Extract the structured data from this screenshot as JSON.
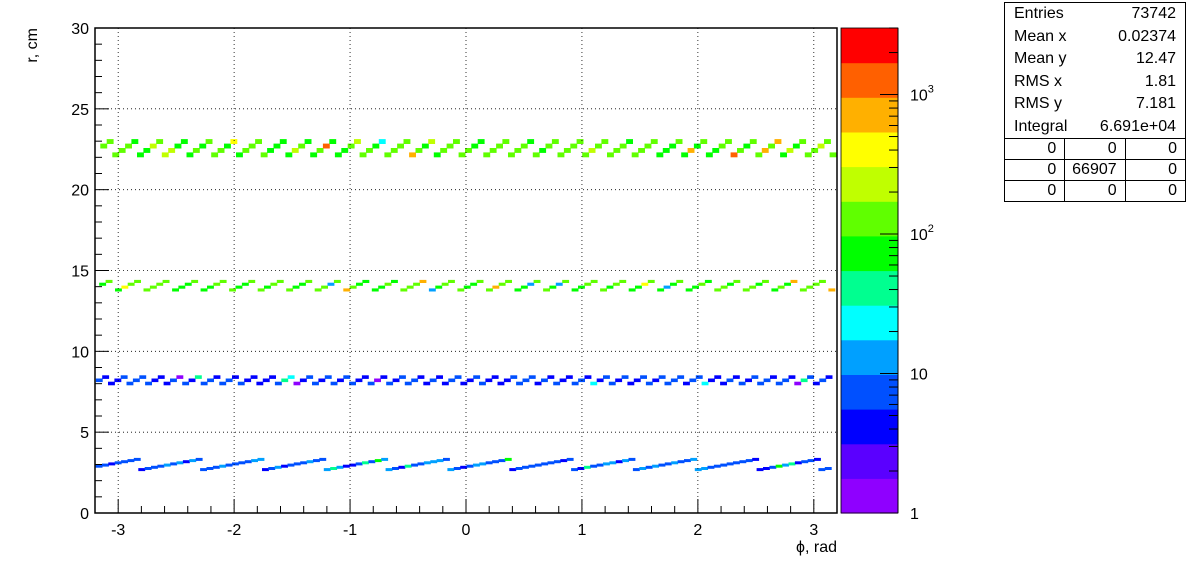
{
  "chart_data": {
    "type": "heatmap",
    "xlabel": "ϕ, rad",
    "ylabel": "r, cm",
    "xlim": [
      -3.2,
      3.2
    ],
    "ylim": [
      0,
      30
    ],
    "x_ticks": [
      -3,
      -2,
      -1,
      0,
      1,
      2,
      3
    ],
    "y_ticks": [
      0,
      5,
      10,
      15,
      20,
      25,
      30
    ],
    "grid": true,
    "z_scale": "log",
    "z_range": [
      1,
      3000
    ],
    "z_ticks": [
      {
        "value": 1,
        "label": "1"
      },
      {
        "value": 10,
        "label": "10"
      },
      {
        "value": 100,
        "label": "10^2"
      },
      {
        "value": 1000,
        "label": "10^3"
      }
    ],
    "bands": [
      {
        "r_low": 2.7,
        "r_high": 3.4,
        "modules": 12,
        "level": 8,
        "bin_width": 0.055
      },
      {
        "r_low": 7.9,
        "r_high": 8.5,
        "modules": 40,
        "level": 6,
        "bin_width": 0.055
      },
      {
        "r_low": 13.7,
        "r_high": 14.4,
        "modules": 26,
        "level": 100,
        "bin_width": 0.055
      },
      {
        "r_low": 22.0,
        "r_high": 23.1,
        "modules": 30,
        "level": 120,
        "bin_width": 0.055
      }
    ]
  },
  "stats": {
    "rows": [
      {
        "label": "Entries",
        "value": "73742"
      },
      {
        "label": "Mean x",
        "value": "0.02374"
      },
      {
        "label": "Mean y",
        "value": "12.47"
      },
      {
        "label": "RMS x",
        "value": "1.81"
      },
      {
        "label": "RMS y",
        "value": "7.181"
      },
      {
        "label": "Integral",
        "value": "6.691e+04"
      }
    ],
    "grid": [
      [
        "0",
        "0",
        "0"
      ],
      [
        "0",
        "66907",
        "0"
      ],
      [
        "0",
        "0",
        "0"
      ]
    ]
  },
  "colors": {
    "palette": [
      "#8f00ff",
      "#5a00ff",
      "#0000ff",
      "#0050ff",
      "#00a0ff",
      "#00ffff",
      "#00ff90",
      "#00ff00",
      "#60ff00",
      "#c0ff00",
      "#ffff00",
      "#ffb000",
      "#ff6000",
      "#ff0000"
    ]
  }
}
